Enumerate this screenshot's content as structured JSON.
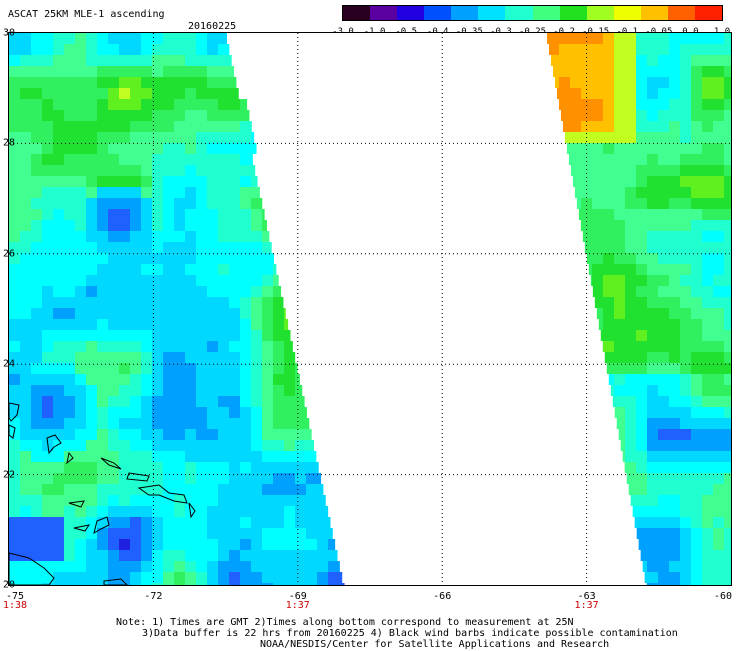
{
  "header": {
    "title": "ASCAT 25KM MLE-1 ascending",
    "date": "20160225"
  },
  "colorbar": {
    "colors": [
      "#2a0020",
      "#5a00a0",
      "#2000e0",
      "#0050ff",
      "#00a0ff",
      "#00e0ff",
      "#20ffd0",
      "#40ff80",
      "#20e020",
      "#a0ff20",
      "#f0ff00",
      "#ffc000",
      "#ff6000",
      "#ff2000"
    ],
    "labels": [
      "-3.0",
      "-1.0",
      "-0.5",
      "-0.4",
      "-0.35",
      "-0.3",
      "-0.25",
      "-0.2",
      "-0.15",
      "-0.1",
      "-0.05",
      "0.0",
      "1.0"
    ]
  },
  "map": {
    "lon_range": [
      -75,
      -60
    ],
    "lat_range": [
      20,
      30
    ],
    "lon_ticks": [
      "-75",
      "-72",
      "-69",
      "-66",
      "-63",
      "-60"
    ],
    "lat_ticks": [
      "30",
      "28",
      "26",
      "24",
      "22",
      "20"
    ],
    "time_labels": [
      {
        "lon": -75,
        "text": "1:38"
      },
      {
        "lon": -69,
        "text": "1:37"
      },
      {
        "lon": -63,
        "text": "1:37"
      }
    ],
    "gridlines": "dotted",
    "land_color": "#000000",
    "swaths": [
      {
        "name": "west-swath",
        "dominant_color": "#20e020",
        "secondary_color": "#00ffff"
      },
      {
        "name": "east-swath",
        "dominant_color": "#20e020",
        "secondary_color": "#00ffff",
        "high_value_color": "#ff9000"
      }
    ]
  },
  "notes": {
    "line1": "Note: 1) Times are GMT 2)Times along bottom correspond to measurement at 25N",
    "line2": "3)Data buffer is 22 hrs from 20160225 4) Black wind barbs indicate possible contamination",
    "line3": "NOAA/NESDIS/Center for Satellite Applications and Research"
  }
}
